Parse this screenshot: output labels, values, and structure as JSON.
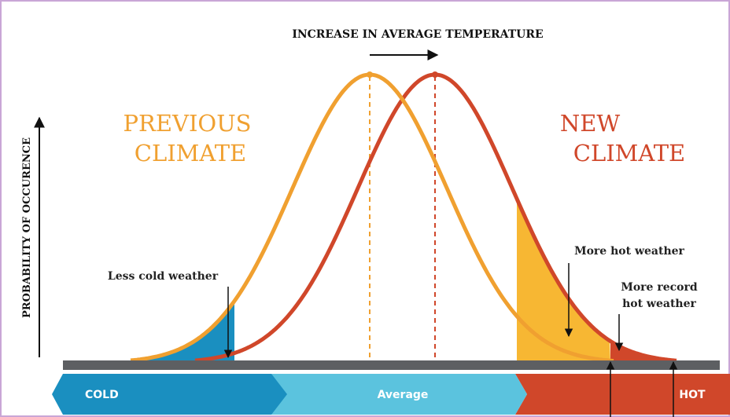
{
  "header": {
    "title": "INCREASE IN AVERAGE TEMPERATURE"
  },
  "axis": {
    "y_label": "PROBABILITY OF OCCURENCE"
  },
  "curves": {
    "previous": {
      "line1": "PREVIOUS",
      "line2": "CLIMATE"
    },
    "new": {
      "line1": "NEW",
      "line2": "CLIMATE"
    }
  },
  "annotations": {
    "less_cold": "Less cold weather",
    "more_hot": "More hot weather",
    "record_hot": {
      "line1": "More record",
      "line2": "hot weather"
    }
  },
  "scale": {
    "cold": "COLD",
    "average": "Average",
    "hot": "HOT"
  }
}
